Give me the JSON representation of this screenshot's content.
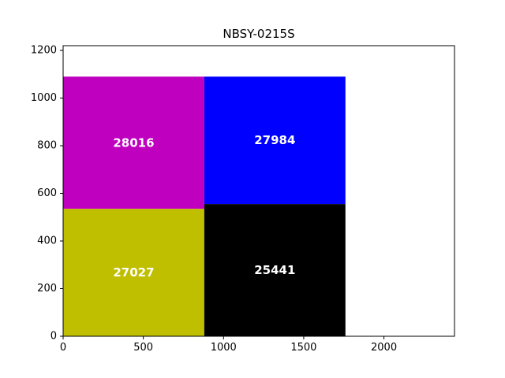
{
  "chart_data": {
    "type": "treemap",
    "title": "NBSY-0215S",
    "xlim": [
      0,
      2440
    ],
    "ylim": [
      0,
      1220
    ],
    "x_ticks": [
      0,
      500,
      1000,
      1500,
      2000
    ],
    "y_ticks": [
      0,
      200,
      400,
      600,
      800,
      1000,
      1200
    ],
    "grid": false,
    "cells": [
      {
        "label": "28016",
        "x0": 0,
        "x1": 880,
        "y0": 535,
        "y1": 1090,
        "color": "#bf00bf"
      },
      {
        "label": "27027",
        "x0": 0,
        "x1": 880,
        "y0": 0,
        "y1": 535,
        "color": "#bfbf00"
      },
      {
        "label": "27984",
        "x0": 880,
        "x1": 1760,
        "y0": 555,
        "y1": 1090,
        "color": "#0000ff"
      },
      {
        "label": "25441",
        "x0": 880,
        "x1": 1760,
        "y0": 0,
        "y1": 555,
        "color": "#000000"
      }
    ]
  }
}
